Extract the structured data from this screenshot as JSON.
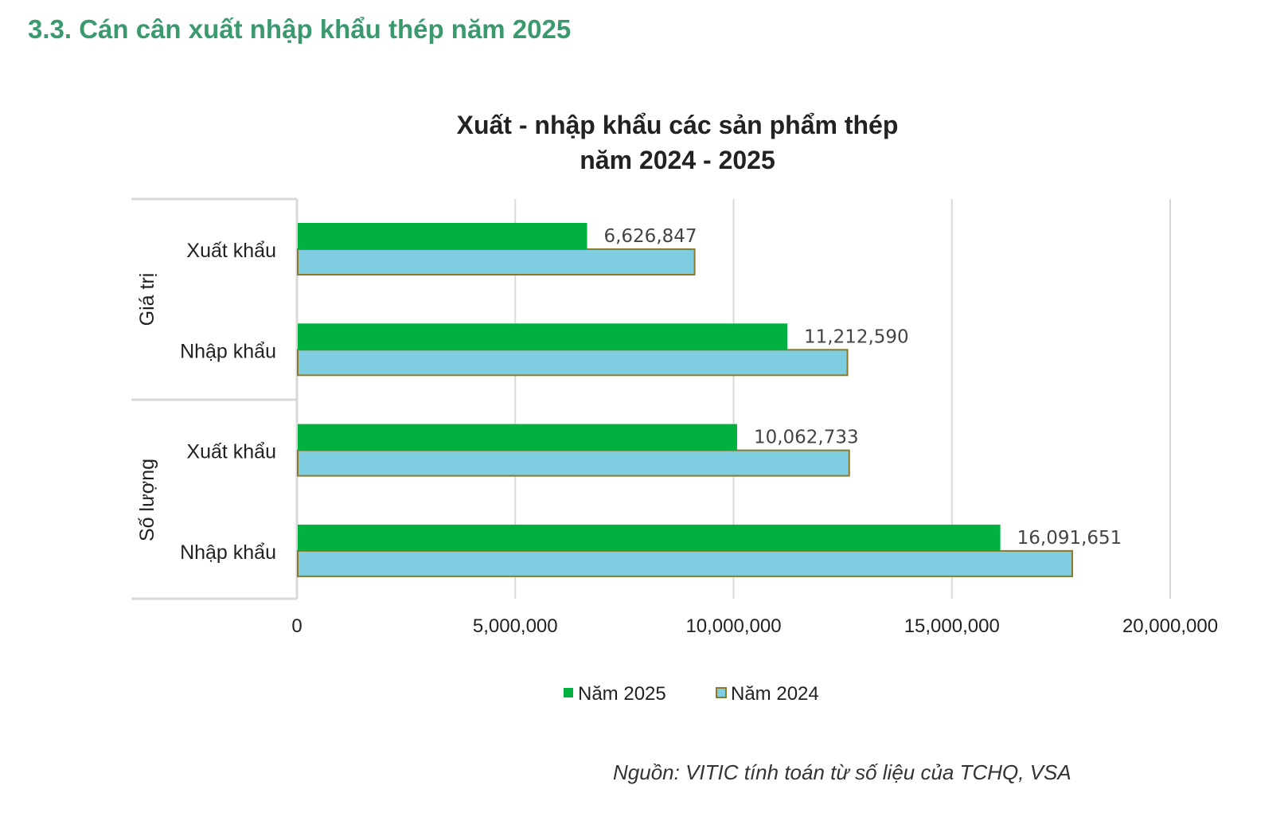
{
  "section_title": "3.3. Cán cân xuất nhập khẩu thép năm 2025",
  "source": "Nguồn: VITIC tính toán từ số liệu của TCHQ, VSA",
  "colors": {
    "2025": "#00b140",
    "2024": "#7ecde0",
    "2024_border": "#8a7a2a",
    "grid": "#d9d9d9"
  },
  "chart_data": {
    "type": "bar",
    "orientation": "horizontal",
    "title": [
      "Xuất - nhập khẩu các sản phẩm thép",
      "năm 2024 - 2025"
    ],
    "groups": [
      {
        "name": "Giá trị",
        "categories": [
          "Xuất khẩu",
          "Nhập khẩu"
        ]
      },
      {
        "name": "Số lượng",
        "categories": [
          "Xuất khẩu",
          "Nhập khẩu"
        ]
      }
    ],
    "series": [
      {
        "name": "Năm 2025",
        "values": [
          6626847,
          11212590,
          10062733,
          16091651
        ],
        "labels": [
          "6,626,847",
          "11,212,590",
          "10,062,733",
          "16,091,651"
        ]
      },
      {
        "name": "Năm 2024",
        "values": [
          9090000,
          12590000,
          12630000,
          17740000
        ]
      }
    ],
    "xlim": [
      0,
      20000000
    ],
    "xticks": [
      "0",
      "5,000,000",
      "10,000,000",
      "15,000,000",
      "20,000,000"
    ],
    "grid": true,
    "legend": "bottom"
  }
}
